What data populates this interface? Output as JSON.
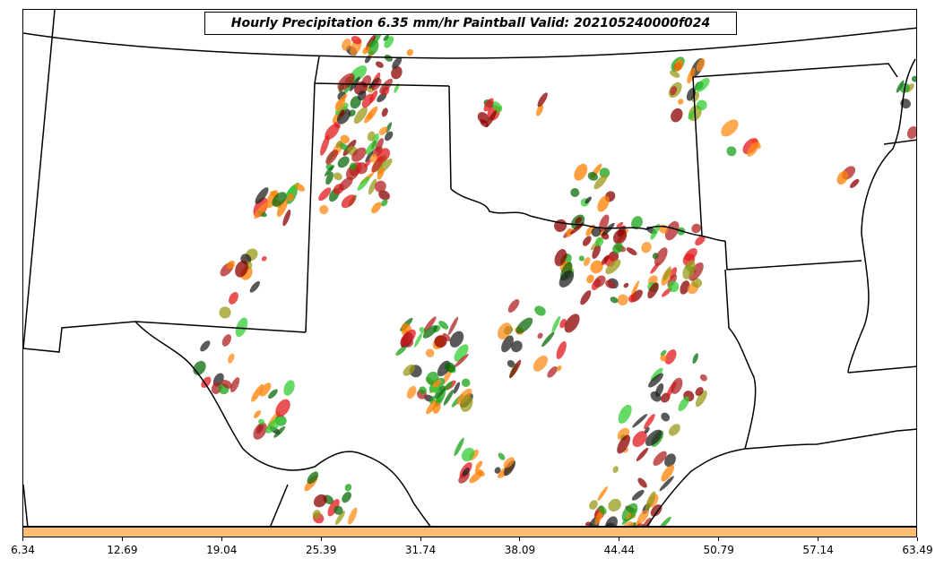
{
  "title": "Hourly Precipitation 6.35 mm/hr Paintball Valid: 202105240000f024",
  "colorbar": {
    "color": "#fdbf6f",
    "ticks": [
      "6.34",
      "12.69",
      "19.04",
      "25.39",
      "31.74",
      "38.09",
      "44.44",
      "50.79",
      "57.14",
      "63.49"
    ]
  },
  "member_colors": [
    "#e31a1c",
    "#ff7f00",
    "#1aa31a",
    "#8b0000",
    "#9a9a1a",
    "#222222",
    "#0b6b0b",
    "#b22222",
    "#33cc33",
    "#ff8c1a"
  ]
}
